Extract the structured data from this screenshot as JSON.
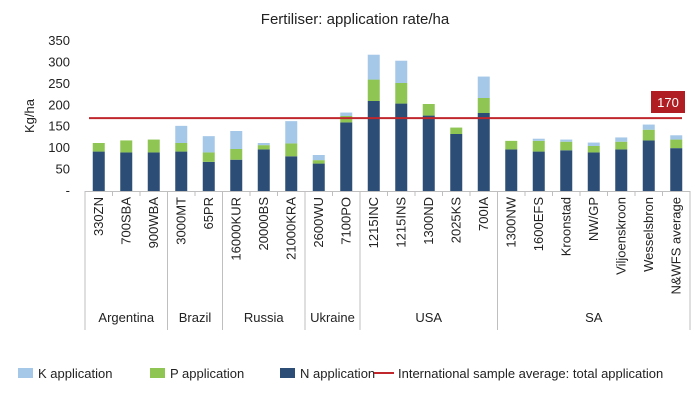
{
  "chart_data": {
    "type": "bar",
    "stacked": true,
    "title": "Fertiliser: application rate/ha",
    "ylabel": "Kg/ha",
    "ylim": [
      0,
      350
    ],
    "yticks": [
      0,
      50,
      100,
      150,
      200,
      250,
      300,
      350
    ],
    "ytick_labels": [
      "-",
      "50",
      "100",
      "150",
      "200",
      "250",
      "300",
      "350"
    ],
    "grid": false,
    "categories": [
      "330ZN",
      "700SBA",
      "900WBA",
      "3000MT",
      "65PR",
      "16000KUR",
      "20000BS",
      "21000KRA",
      "2600WU",
      "7100PO",
      "1215INC",
      "1215INS",
      "1300ND",
      "2025KS",
      "700IA",
      "1300NW",
      "1600EFS",
      "Kroonstad",
      "NW/GP",
      "Viljoenskroon",
      "Wesselsbron",
      "N&WFS average"
    ],
    "groups": [
      {
        "label": "Argentina",
        "count": 3
      },
      {
        "label": "Brazil",
        "count": 2
      },
      {
        "label": "Russia",
        "count": 3
      },
      {
        "label": "Ukraine",
        "count": 2
      },
      {
        "label": "USA",
        "count": 5
      },
      {
        "label": "SA",
        "count": 7
      }
    ],
    "series": [
      {
        "name": "N application",
        "color": "#2c4d75",
        "values": [
          92,
          90,
          90,
          92,
          68,
          73,
          97,
          81,
          64,
          160,
          210,
          204,
          176,
          133,
          182,
          97,
          92,
          95,
          90,
          97,
          118,
          100
        ]
      },
      {
        "name": "P application",
        "color": "#8fc653",
        "values": [
          20,
          28,
          30,
          20,
          22,
          25,
          10,
          30,
          8,
          15,
          50,
          48,
          27,
          15,
          35,
          20,
          25,
          20,
          15,
          18,
          25,
          20
        ]
      },
      {
        "name": "K application",
        "color": "#a6c8e8",
        "values": [
          0,
          0,
          0,
          40,
          38,
          42,
          5,
          52,
          12,
          8,
          58,
          52,
          0,
          0,
          50,
          0,
          5,
          5,
          8,
          10,
          12,
          10
        ]
      }
    ],
    "legend_order": [
      "K application",
      "P application",
      "N application",
      "International sample average: total application"
    ],
    "legend_position": "bottom",
    "reference_line": {
      "name": "International sample average: total application",
      "value": 170,
      "color": "#c0272d",
      "label": "170"
    }
  }
}
